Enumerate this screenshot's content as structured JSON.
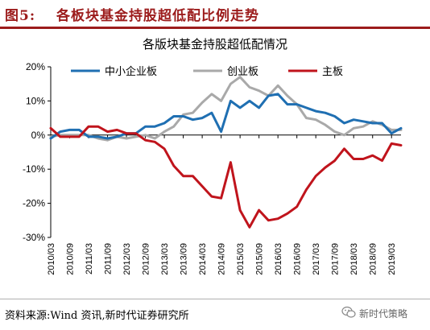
{
  "header": {
    "figure_label": "图5:",
    "figure_title": "各板块基金持股超低配比例走势"
  },
  "footer": {
    "source": "资料来源:Wind 资讯,新时代证券研究所",
    "watermark": "新时代策略"
  },
  "colors": {
    "header": "#9c1c1c",
    "sme": "#1f6fb2",
    "gem": "#a9a9a9",
    "main": "#c0141c"
  },
  "icons": {
    "watermark": "wechat-icon"
  },
  "chart_data": {
    "type": "line",
    "title": "各版块基金持股超低配情况",
    "xlabel": "",
    "ylabel": "",
    "ylim": [
      -30,
      20
    ],
    "yticks": [
      -30,
      -20,
      -10,
      0,
      10,
      20
    ],
    "ytick_labels": [
      "-30%",
      "-20%",
      "-10%",
      "0%",
      "10%",
      "20%"
    ],
    "grid": false,
    "legend": "top",
    "x": [
      "2010/03",
      "2010/06",
      "2010/09",
      "2010/12",
      "2011/03",
      "2011/06",
      "2011/09",
      "2011/12",
      "2012/03",
      "2012/06",
      "2012/09",
      "2012/12",
      "2013/03",
      "2013/06",
      "2013/09",
      "2013/12",
      "2014/03",
      "2014/06",
      "2014/09",
      "2014/12",
      "2015/03",
      "2015/06",
      "2015/09",
      "2015/12",
      "2016/03",
      "2016/06",
      "2016/09",
      "2016/12",
      "2017/03",
      "2017/06",
      "2017/09",
      "2017/12",
      "2018/03",
      "2018/06",
      "2018/09",
      "2018/12",
      "2019/03",
      "2019/06"
    ],
    "xtick_labels": [
      "2010/03",
      "2010/09",
      "2011/03",
      "2011/09",
      "2012/03",
      "2012/09",
      "2013/03",
      "2013/09",
      "2014/03",
      "2014/09",
      "2015/03",
      "2015/09",
      "2016/03",
      "2016/09",
      "2017/03",
      "2017/09",
      "2018/03",
      "2018/09",
      "2019/03"
    ],
    "series": [
      {
        "name": "中小企业板",
        "values": [
          -1.0,
          1.0,
          1.5,
          1.5,
          -0.5,
          -0.5,
          -1.0,
          -0.5,
          0.5,
          0.5,
          2.5,
          2.5,
          3.5,
          5.5,
          5.5,
          4.5,
          5.0,
          6.5,
          1.0,
          10.0,
          8.0,
          10.0,
          8.0,
          11.5,
          12.0,
          9.0,
          9.0,
          8.0,
          7.0,
          6.5,
          5.5,
          3.5,
          4.5,
          4.0,
          3.5,
          3.5,
          0.5,
          2.0
        ]
      },
      {
        "name": "创业板",
        "values": [
          -0.5,
          0.0,
          0.0,
          0.0,
          0.0,
          -1.0,
          -1.5,
          -0.5,
          -1.0,
          -0.5,
          0.0,
          -1.0,
          1.0,
          2.5,
          6.0,
          6.5,
          9.5,
          12.0,
          10.0,
          15.0,
          17.0,
          14.0,
          13.0,
          11.5,
          14.5,
          11.5,
          9.0,
          5.0,
          4.5,
          3.0,
          1.0,
          0.0,
          2.0,
          2.5,
          4.0,
          3.0,
          1.5,
          1.5
        ]
      },
      {
        "name": "主板",
        "values": [
          2.0,
          -0.5,
          -0.5,
          -0.5,
          2.5,
          2.5,
          1.0,
          1.5,
          0.5,
          0.5,
          -1.5,
          -2.0,
          -4.0,
          -9.0,
          -12.0,
          -12.0,
          -15.0,
          -18.0,
          -18.5,
          -8.0,
          -22.0,
          -27.0,
          -22.0,
          -25.0,
          -24.5,
          -23.0,
          -21.0,
          -16.0,
          -12.0,
          -9.5,
          -7.5,
          -4.0,
          -7.0,
          -7.0,
          -6.0,
          -7.5,
          -2.5,
          -3.0
        ]
      }
    ]
  }
}
